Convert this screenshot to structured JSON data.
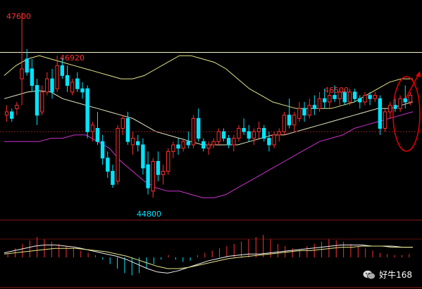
{
  "chart_data": {
    "type": "candlestick",
    "title": "",
    "xlabel": "",
    "ylabel": "",
    "ylim": [
      44600,
      47750
    ],
    "grid": false,
    "price_labels": {
      "high_1": "47600",
      "high_2": "46920",
      "high_3": "46500",
      "low_1": "44800"
    },
    "colors": {
      "background": "#000000",
      "up": "#ff3030",
      "down": "#00e5ff",
      "upper_band": "#e6e68a",
      "middle_band": "#e6e6c0",
      "lower_band": "#cc33cc",
      "horizontal_line": "#f5f5c8",
      "highlight_ellipse": "#e00000",
      "dotted_line": "#8b1a1a"
    },
    "candles": [
      [
        46050,
        46200,
        45950,
        46100
      ],
      [
        46100,
        46150,
        45950,
        46000
      ],
      [
        46150,
        46250,
        46050,
        46200
      ],
      [
        46600,
        47600,
        46200,
        46750
      ],
      [
        46900,
        47050,
        46650,
        46700
      ],
      [
        46750,
        46900,
        46400,
        46500
      ],
      [
        46500,
        46600,
        45900,
        46050
      ],
      [
        46100,
        46500,
        46050,
        46400
      ],
      [
        46400,
        46700,
        46350,
        46600
      ],
      [
        46600,
        46750,
        46300,
        46400
      ],
      [
        46450,
        46950,
        46400,
        46800
      ],
      [
        46800,
        46920,
        46600,
        46650
      ],
      [
        46650,
        46800,
        46400,
        46500
      ],
      [
        46400,
        46600,
        46350,
        46550
      ],
      [
        46600,
        46700,
        46400,
        46450
      ],
      [
        46450,
        46550,
        46300,
        46400
      ],
      [
        46450,
        46500,
        45700,
        45800
      ],
      [
        45800,
        45950,
        45650,
        45900
      ],
      [
        45850,
        46100,
        45600,
        45650
      ],
      [
        45650,
        45750,
        45300,
        45400
      ],
      [
        45400,
        45500,
        45100,
        45200
      ],
      [
        45200,
        45300,
        44950,
        45000
      ],
      [
        45050,
        45900,
        45000,
        45850
      ],
      [
        45850,
        46050,
        45750,
        46000
      ],
      [
        46000,
        46100,
        45600,
        45650
      ],
      [
        45600,
        45800,
        45450,
        45700
      ],
      [
        45650,
        45750,
        45500,
        45600
      ],
      [
        45600,
        45700,
        45150,
        45250
      ],
      [
        45300,
        45500,
        44850,
        44950
      ],
      [
        44900,
        45400,
        44800,
        45350
      ],
      [
        45350,
        45500,
        45050,
        45150
      ],
      [
        45150,
        45300,
        45000,
        45200
      ],
      [
        45200,
        45550,
        45150,
        45500
      ],
      [
        45500,
        45650,
        45400,
        45600
      ],
      [
        45600,
        45700,
        45450,
        45550
      ],
      [
        45550,
        45700,
        45500,
        45650
      ],
      [
        45650,
        45800,
        45550,
        45600
      ],
      [
        45600,
        46050,
        45550,
        46000
      ],
      [
        46000,
        46150,
        45650,
        45700
      ],
      [
        45650,
        45700,
        45500,
        45550
      ],
      [
        45550,
        45650,
        45450,
        45600
      ],
      [
        45600,
        45700,
        45550,
        45650
      ],
      [
        45650,
        45850,
        45600,
        45800
      ],
      [
        45800,
        45850,
        45650,
        45700
      ],
      [
        45700,
        45750,
        45550,
        45600
      ],
      [
        45600,
        45750,
        45500,
        45700
      ],
      [
        45700,
        45900,
        45650,
        45850
      ],
      [
        45850,
        46000,
        45750,
        45800
      ],
      [
        45800,
        45900,
        45650,
        45700
      ],
      [
        45700,
        45850,
        45600,
        45800
      ],
      [
        45800,
        45950,
        45700,
        45850
      ],
      [
        45850,
        45900,
        45650,
        45700
      ],
      [
        45700,
        45800,
        45500,
        45600
      ],
      [
        45600,
        45800,
        45550,
        45750
      ],
      [
        45750,
        45850,
        45650,
        45800
      ],
      [
        45800,
        46100,
        45750,
        46050
      ],
      [
        46050,
        46300,
        45850,
        45900
      ],
      [
        45900,
        46100,
        45800,
        46050
      ],
      [
        46000,
        46250,
        45950,
        46150
      ],
      [
        46150,
        46250,
        45950,
        46050
      ],
      [
        46050,
        46300,
        46000,
        46200
      ],
      [
        46200,
        46350,
        46050,
        46150
      ],
      [
        46150,
        46400,
        46100,
        46300
      ],
      [
        46300,
        46450,
        46150,
        46250
      ],
      [
        46250,
        46400,
        46150,
        46350
      ],
      [
        46350,
        46500,
        46250,
        46300
      ],
      [
        46300,
        46450,
        46200,
        46400
      ],
      [
        46400,
        46450,
        46200,
        46250
      ],
      [
        46250,
        46450,
        46200,
        46400
      ],
      [
        46400,
        46450,
        46250,
        46300
      ],
      [
        46300,
        46350,
        46150,
        46250
      ],
      [
        46250,
        46400,
        46200,
        46350
      ],
      [
        46350,
        46400,
        46200,
        46300
      ],
      [
        46300,
        46400,
        46250,
        46350
      ],
      [
        46300,
        46350,
        45750,
        45850
      ],
      [
        45850,
        46150,
        45800,
        46100
      ],
      [
        46100,
        46250,
        46000,
        46200
      ],
      [
        46200,
        46300,
        46100,
        46150
      ],
      [
        46150,
        46350,
        46100,
        46300
      ],
      [
        46300,
        46500,
        46150,
        46250
      ],
      [
        46250,
        46400,
        46200,
        46350
      ]
    ],
    "bollinger": {
      "upper": [
        46650,
        46800,
        46900,
        46950,
        46900,
        46850,
        46800,
        46750,
        46700,
        46650,
        46600,
        46600,
        46650,
        46750,
        46850,
        46950,
        46950,
        46900,
        46850,
        46750,
        46600,
        46450,
        46350,
        46250,
        46200,
        46150,
        46150,
        46150,
        46150,
        46200,
        46250,
        46350,
        46450,
        46550,
        46600,
        46600
      ],
      "middle": [
        46300,
        46350,
        46400,
        46420,
        46400,
        46300,
        46250,
        46200,
        46150,
        46100,
        46050,
        46000,
        45900,
        45800,
        45750,
        45700,
        45650,
        45600,
        45600,
        45600,
        45600,
        45650,
        45700,
        45750,
        45750,
        45800,
        45850,
        45900,
        45950,
        46000,
        46050,
        46100,
        46150,
        46150,
        46200,
        46250
      ],
      "lower": [
        45650,
        45650,
        45650,
        45650,
        45700,
        45700,
        45750,
        45750,
        45650,
        45550,
        45350,
        45200,
        45050,
        44950,
        44900,
        44900,
        44850,
        44800,
        44800,
        44850,
        44950,
        45050,
        45150,
        45250,
        45350,
        45450,
        45550,
        45650,
        45700,
        45750,
        45850,
        45900,
        45950,
        46000,
        46050,
        46100
      ]
    },
    "horizontal_line": 47000,
    "dotted_line": 45800,
    "macd": {
      "hist": [
        3,
        8,
        12,
        15,
        18,
        16,
        14,
        12,
        10,
        8,
        6,
        4,
        2,
        -2,
        -6,
        -10,
        -14,
        -16,
        -14,
        -10,
        -6,
        -2,
        2,
        -2,
        -4,
        -3,
        2,
        4,
        6,
        8,
        10,
        12,
        14,
        16,
        18,
        20,
        16,
        12,
        10,
        8,
        6,
        10,
        12,
        14,
        16,
        15,
        14,
        12,
        10,
        8,
        6,
        4,
        3,
        2,
        2,
        3
      ],
      "dif": [
        4,
        6,
        8,
        10,
        11,
        11,
        10,
        9,
        7,
        5,
        3,
        1,
        -2,
        -6,
        -10,
        -13,
        -14,
        -12,
        -9,
        -6,
        -3,
        -1,
        1,
        2,
        3,
        3,
        4,
        5,
        6,
        7,
        8,
        9,
        10,
        11,
        11,
        11,
        10,
        10,
        10,
        9,
        9
      ],
      "dea": [
        3,
        4,
        5,
        6,
        7,
        8,
        8,
        8,
        7,
        6,
        5,
        3,
        1,
        -2,
        -5,
        -8,
        -10,
        -10,
        -9,
        -7,
        -5,
        -3,
        -1,
        0,
        1,
        2,
        3,
        4,
        5,
        6,
        6,
        7,
        8,
        9,
        9,
        10,
        10,
        10,
        9,
        9,
        9
      ]
    }
  },
  "watermark": {
    "text": "好牛168",
    "icon": "wechat-icon"
  }
}
